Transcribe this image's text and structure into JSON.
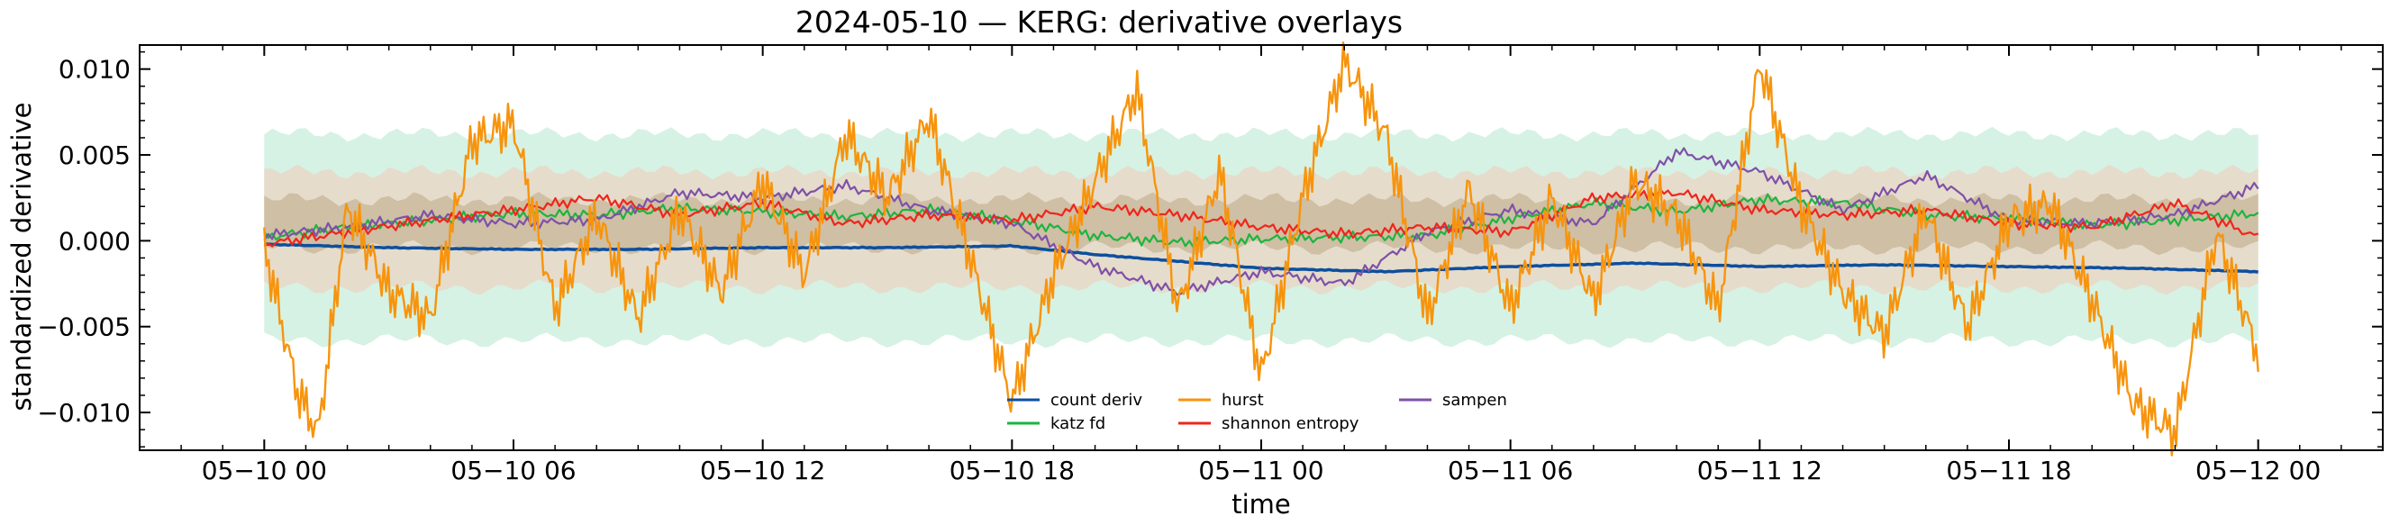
{
  "chart_data": {
    "type": "line",
    "title": "2024-05-10 — KERG: derivative overlays",
    "xlabel": "time",
    "ylabel": "standardized derivative",
    "x_start": "2024-05-10 00:00",
    "x_end": "2024-05-12 00:00",
    "xlim": [
      "2024-05-09 21:00",
      "2024-05-12 03:00"
    ],
    "ylim": [
      -0.0122,
      0.0114
    ],
    "x_ticks": [
      {
        "label": "05−10 00",
        "hours": 0
      },
      {
        "label": "05−10 06",
        "hours": 6
      },
      {
        "label": "05−10 12",
        "hours": 12
      },
      {
        "label": "05−10 18",
        "hours": 18
      },
      {
        "label": "05−11 00",
        "hours": 24
      },
      {
        "label": "05−11 06",
        "hours": 30
      },
      {
        "label": "05−11 12",
        "hours": 36
      },
      {
        "label": "05−11 18",
        "hours": 42
      },
      {
        "label": "05−12 00",
        "hours": 48
      }
    ],
    "y_ticks": [
      {
        "label": "0.010",
        "value": 0.01
      },
      {
        "label": "0.005",
        "value": 0.005
      },
      {
        "label": "0.000",
        "value": 0.0
      },
      {
        "label": "−0.005",
        "value": -0.005
      },
      {
        "label": "−0.010",
        "value": -0.01
      }
    ],
    "bands": [
      {
        "name": "outer",
        "color": "#d6f2e4",
        "lower": -0.0058,
        "upper": 0.0062
      },
      {
        "name": "middle",
        "color": "#e6dccb",
        "lower": -0.0027,
        "upper": 0.004
      },
      {
        "name": "inner",
        "color": "#cfbfa4",
        "lower": -0.0004,
        "upper": 0.0024
      }
    ],
    "legend_position": "lower-center",
    "series": [
      {
        "name": "count deriv",
        "color": "#0d4f9e",
        "width": 3.5,
        "x_hours": [
          0,
          3,
          6,
          9,
          12,
          15,
          18,
          20,
          22,
          24,
          27,
          30,
          33,
          36,
          39,
          42,
          45,
          48
        ],
        "values": [
          -0.0002,
          -0.0004,
          -0.0005,
          -0.0005,
          -0.0004,
          -0.0004,
          -0.0003,
          -0.0008,
          -0.0012,
          -0.0016,
          -0.0018,
          -0.0015,
          -0.0013,
          -0.0015,
          -0.0014,
          -0.0015,
          -0.0016,
          -0.0018
        ]
      },
      {
        "name": "katz fd",
        "color": "#1db43f",
        "width": 2.2,
        "x_hours": [
          0,
          2,
          4,
          6,
          8,
          10,
          12,
          14,
          16,
          18,
          20,
          22,
          24,
          26,
          28,
          30,
          32,
          34,
          36,
          38,
          40,
          42,
          44,
          46,
          48
        ],
        "values": [
          0.0002,
          0.0008,
          0.0012,
          0.0016,
          0.0015,
          0.0019,
          0.0017,
          0.0014,
          0.0018,
          0.0012,
          0.0003,
          -0.0001,
          0.0001,
          0.0002,
          0.0003,
          0.0013,
          0.0022,
          0.0017,
          0.0024,
          0.0022,
          0.0015,
          0.0013,
          0.0009,
          0.0012,
          0.0016
        ]
      },
      {
        "name": "hurst",
        "color": "#f7940d",
        "width": 2.4,
        "x_hours": [
          0,
          0.8,
          1.3,
          2,
          3,
          4,
          5,
          6,
          7,
          8,
          9,
          10,
          11,
          12,
          13,
          14,
          15,
          16,
          17,
          18,
          19,
          20,
          21,
          22,
          23,
          24,
          25,
          26,
          27,
          28,
          29,
          30,
          31,
          32,
          33,
          34,
          35,
          36,
          37,
          38,
          39,
          40,
          41,
          42,
          43,
          44,
          45,
          46,
          47,
          48
        ],
        "values": [
          -0.0003,
          -0.0088,
          -0.0112,
          0.002,
          -0.003,
          -0.0045,
          0.0058,
          0.0068,
          -0.004,
          0.0015,
          -0.0045,
          0.0018,
          -0.003,
          0.0035,
          -0.002,
          0.0062,
          0.0025,
          0.0072,
          -0.001,
          -0.0094,
          -0.002,
          0.0035,
          0.0088,
          -0.004,
          0.004,
          -0.0079,
          0.0025,
          0.0104,
          0.0062,
          -0.0045,
          0.003,
          -0.004,
          0.0025,
          -0.0035,
          0.0035,
          0.0015,
          -0.004,
          0.0103,
          0.002,
          -0.003,
          -0.0055,
          0.0018,
          -0.005,
          0.0012,
          0.0022,
          -0.0035,
          -0.0095,
          -0.0112,
          0.0005,
          -0.0066
        ]
      },
      {
        "name": "shannon entropy",
        "color": "#f0251b",
        "width": 2.2,
        "x_hours": [
          0,
          2,
          4,
          6,
          8,
          10,
          12,
          14,
          16,
          18,
          20,
          22,
          24,
          26,
          28,
          30,
          32,
          34,
          36,
          38,
          40,
          42,
          44,
          46,
          48
        ],
        "values": [
          -0.0002,
          0.0005,
          0.0012,
          0.0018,
          0.0025,
          0.0015,
          0.0022,
          0.001,
          0.0015,
          0.0012,
          0.002,
          0.0015,
          0.0008,
          0.0004,
          0.0008,
          0.0005,
          0.0025,
          0.0028,
          0.0018,
          0.0015,
          0.0018,
          0.001,
          0.0008,
          0.0022,
          0.0002
        ]
      },
      {
        "name": "sampen",
        "color": "#7e51a8",
        "width": 2.2,
        "x_hours": [
          0,
          2,
          4,
          6,
          8,
          10,
          12,
          14,
          16,
          18,
          20,
          22,
          24,
          26,
          28,
          30,
          32,
          34,
          36,
          38,
          40,
          42,
          44,
          46,
          48
        ],
        "values": [
          0.0003,
          0.0008,
          0.0015,
          0.001,
          0.0012,
          0.0028,
          0.0025,
          0.0032,
          0.0018,
          0.001,
          -0.0015,
          -0.003,
          -0.0018,
          -0.0025,
          0.0005,
          0.0018,
          0.001,
          0.0052,
          0.004,
          0.0018,
          0.0038,
          0.0012,
          0.001,
          0.0015,
          0.0032
        ]
      }
    ]
  }
}
